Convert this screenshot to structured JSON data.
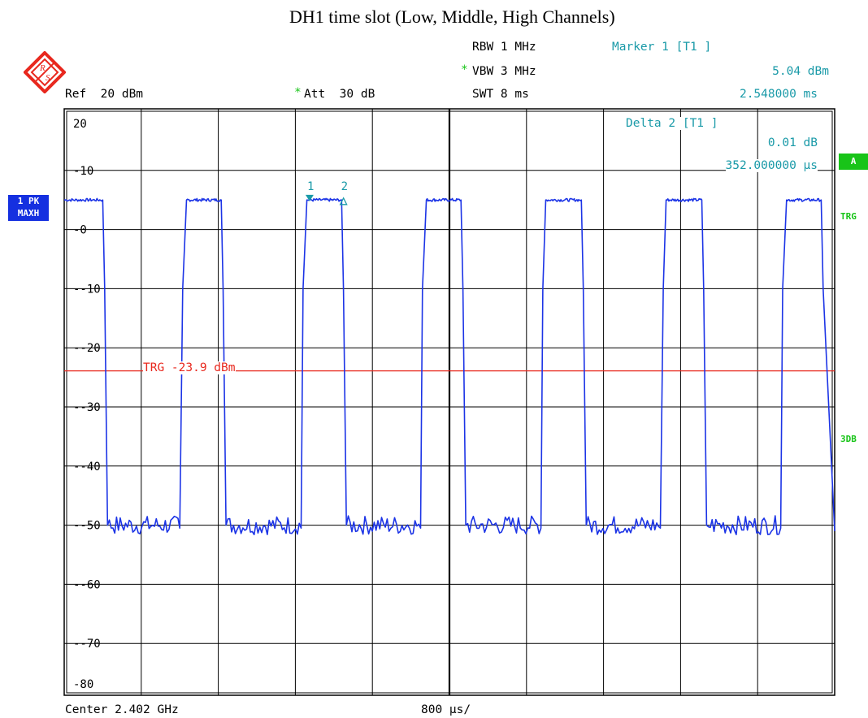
{
  "chart_data": {
    "type": "line",
    "title": "DH1 time slot (Low, Middle, High Channels)",
    "ylim": [
      -85,
      20
    ],
    "xlim_ms": [
      0,
      8
    ],
    "y_ticks": [
      20,
      10,
      0,
      -10,
      -20,
      -30,
      -40,
      -50,
      -60,
      -70,
      -80
    ],
    "y_tick_labels": [
      "20",
      "-10",
      "-0",
      "--10",
      "--20",
      "--30",
      "--40",
      "--50",
      "--60",
      "--70",
      "-80"
    ],
    "trigger_level_dbm": -23.9,
    "trigger_label": "TRG -23.9 dBm",
    "series": [
      {
        "x_ms": [
          0.0,
          0.4,
          0.42,
          0.45,
          1.2,
          1.23,
          1.27,
          1.63,
          1.65,
          1.68,
          2.46,
          2.48,
          2.52,
          2.88,
          2.9,
          2.93,
          3.7,
          3.72,
          3.76,
          4.12,
          4.14,
          4.17,
          4.95,
          4.97,
          5.0,
          5.37,
          5.39,
          5.42,
          6.19,
          6.22,
          6.25,
          6.62,
          6.64,
          6.67,
          7.44,
          7.46,
          7.5,
          7.86,
          7.88,
          8.0
        ],
        "y_dbm": [
          5.0,
          5.0,
          -10,
          -50,
          -50.5,
          -10,
          5.0,
          5.0,
          -10,
          -50,
          -50.5,
          -10,
          5.0,
          5.0,
          -10,
          -50,
          -50.5,
          -10,
          5.0,
          5.0,
          -10,
          -50,
          -50.5,
          -10,
          5.0,
          5.0,
          -10,
          -50,
          -50.5,
          -10,
          5.0,
          5.0,
          -10,
          -50,
          -50.5,
          -10,
          5.0,
          5.0,
          -10,
          -51
        ]
      }
    ],
    "markers": [
      {
        "label": "1",
        "x_ms": 2.548,
        "y_dbm": 5.04,
        "type": "filled"
      },
      {
        "label": "2",
        "x_ms": 2.9,
        "y_dbm": 5.05,
        "type": "delta"
      }
    ]
  },
  "header": {
    "rbw": "RBW 1 MHz",
    "vbw_star": "*",
    "vbw": "VBW 3 MHz",
    "swt": "SWT 8 ms",
    "ref": "Ref  20 dBm",
    "att_star": "*",
    "att": "Att  30 dB",
    "marker1_title": "Marker 1 [T1 ]",
    "marker1_level": "5.04 dBm",
    "marker1_time": "2.548000 ms",
    "delta2_title": "Delta 2 [T1 ]",
    "delta2_level": "0.01 dB",
    "delta2_time": "352.000000 µs"
  },
  "footer": {
    "center": "Center 2.402 GHz",
    "span": "800 µs/"
  },
  "side": {
    "trace_line1": "1 PK",
    "trace_line2": "MAXH",
    "badge_a": "A",
    "trg": "TRG",
    "db3": "3DB"
  },
  "colors": {
    "trace": "#1c34e6",
    "trigger": "#e8281e",
    "marker": "#1a9aa8",
    "grid": "#000000",
    "badge": "#18c418",
    "trace_badge": "#1530e0"
  }
}
